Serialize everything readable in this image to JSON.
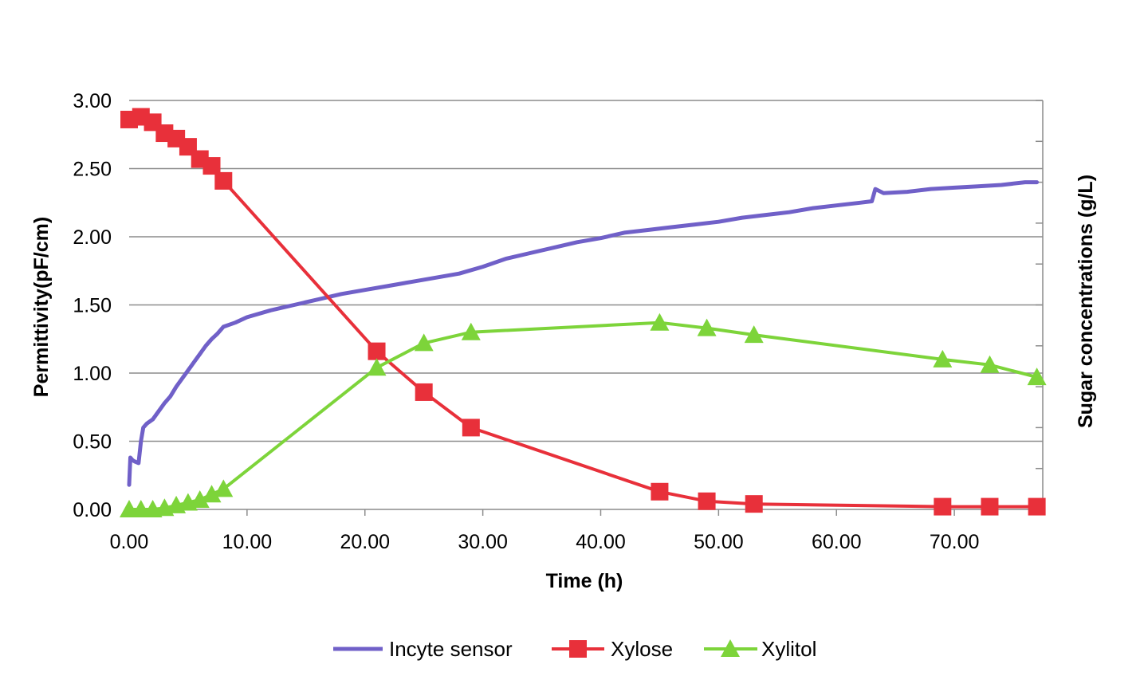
{
  "chart_data": {
    "type": "line",
    "xlabel": "Time (h)",
    "ylabel": "Permittivity(pF/cm)",
    "y2label": "Sugar concentrations (g/L)",
    "xlim": [
      0,
      77.5
    ],
    "ylim": [
      0,
      3.0
    ],
    "x_ticks": [
      "0.00",
      "10.00",
      "20.00",
      "30.00",
      "40.00",
      "50.00",
      "60.00",
      "70.00"
    ],
    "x_tick_values": [
      0,
      10,
      20,
      30,
      40,
      50,
      60,
      70
    ],
    "y_ticks": [
      "0.00",
      "0.50",
      "1.00",
      "1.50",
      "2.00",
      "2.50",
      "3.00"
    ],
    "y_tick_values": [
      0,
      0.5,
      1.0,
      1.5,
      2.0,
      2.5,
      3.0
    ],
    "y2_tick_count": 11,
    "grid": true,
    "legend_position": "bottom",
    "series": [
      {
        "name": "Incyte sensor",
        "color": "#7060c8",
        "marker": "none",
        "x": [
          0,
          0.1,
          0.3,
          0.5,
          0.8,
          1.0,
          1.2,
          1.5,
          2.0,
          2.5,
          3.0,
          3.5,
          4.0,
          4.5,
          5.0,
          5.5,
          6.0,
          6.5,
          7.0,
          7.5,
          8.0,
          9.0,
          10.0,
          12.0,
          14.0,
          16.0,
          18.0,
          20.0,
          22.0,
          24.0,
          26.0,
          28.0,
          30.0,
          32.0,
          34.0,
          36.0,
          38.0,
          40.0,
          42.0,
          44.0,
          46.0,
          48.0,
          50.0,
          52.0,
          54.0,
          56.0,
          58.0,
          60.0,
          62.0,
          63.0,
          63.3,
          64.0,
          66.0,
          68.0,
          70.0,
          72.0,
          74.0,
          76.0,
          77.0
        ],
        "values": [
          0.18,
          0.38,
          0.36,
          0.35,
          0.34,
          0.5,
          0.6,
          0.63,
          0.66,
          0.72,
          0.78,
          0.83,
          0.9,
          0.96,
          1.02,
          1.08,
          1.14,
          1.2,
          1.25,
          1.29,
          1.34,
          1.37,
          1.41,
          1.46,
          1.5,
          1.54,
          1.58,
          1.61,
          1.64,
          1.67,
          1.7,
          1.73,
          1.78,
          1.84,
          1.88,
          1.92,
          1.96,
          1.99,
          2.03,
          2.05,
          2.07,
          2.09,
          2.11,
          2.14,
          2.16,
          2.18,
          2.21,
          2.23,
          2.25,
          2.26,
          2.35,
          2.32,
          2.33,
          2.35,
          2.36,
          2.37,
          2.38,
          2.4,
          2.4
        ]
      },
      {
        "name": "Xylose",
        "color": "#e8303a",
        "marker": "square",
        "x": [
          0,
          1,
          2,
          3,
          4,
          5,
          6,
          7,
          8,
          21,
          25,
          29,
          45,
          49,
          53,
          69,
          73,
          77
        ],
        "values": [
          2.86,
          2.88,
          2.84,
          2.76,
          2.72,
          2.66,
          2.57,
          2.52,
          2.41,
          1.16,
          0.86,
          0.6,
          0.13,
          0.06,
          0.04,
          0.02,
          0.02,
          0.02
        ]
      },
      {
        "name": "Xylitol",
        "color": "#7dd43a",
        "marker": "triangle",
        "x": [
          0,
          1,
          2,
          3,
          4,
          5,
          6,
          7,
          8,
          21,
          25,
          29,
          45,
          49,
          53,
          69,
          73,
          77
        ],
        "values": [
          0.0,
          0.0,
          0.0,
          0.01,
          0.03,
          0.05,
          0.07,
          0.11,
          0.15,
          1.04,
          1.22,
          1.3,
          1.37,
          1.33,
          1.28,
          1.1,
          1.06,
          0.97
        ]
      }
    ]
  }
}
